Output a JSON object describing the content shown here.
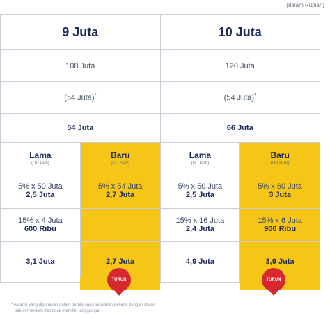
{
  "unit_note": "(dalam Rupiah)",
  "columns": [
    {
      "title": "9 Juta",
      "gross": "108 Juta",
      "ptkp": "(54 Juta)",
      "ptkp_mark": "*",
      "pkp": "54 Juta",
      "lama": {
        "label": "Lama",
        "sub": "(UU PPh)",
        "calc1_line": "5% x 50 Juta",
        "calc1_result": "2,5 Juta",
        "calc2_line": "15% x 4 Juta",
        "calc2_result": "600 Ribu",
        "total": "3,1 Juta"
      },
      "baru": {
        "label": "Baru",
        "sub": "(UU HPP)",
        "calc1_line": "5% x 54 Juta",
        "calc1_result": "2,7 Juta",
        "calc2_line": "",
        "calc2_result": "",
        "total": "2,7 Juta"
      },
      "badge": "TURUN"
    },
    {
      "title": "10 Juta",
      "gross": "120 Juta",
      "ptkp": "(54 Juta)",
      "ptkp_mark": "*",
      "pkp": "66 Juta",
      "lama": {
        "label": "Lama",
        "sub": "(UU PPh)",
        "calc1_line": "5% x 50 Juta",
        "calc1_result": "2,5 Juta",
        "calc2_line": "15% x 16 Juta",
        "calc2_result": "2,4 Juta",
        "total": "4,9 Juta"
      },
      "baru": {
        "label": "Baru",
        "sub": "(UU HPP)",
        "calc1_line": "5% x 60 Juta",
        "calc1_result": "3 Juta",
        "calc2_line": "15% x 6 Juta",
        "calc2_result": "900 Ribu",
        "total": "3,9 Juta"
      },
      "badge": "TURUN"
    }
  ],
  "footnote": {
    "mark": "*",
    "line1": "Asumsi yang digunakan dalam perhitungan ini adalah pekerja dengan status",
    "line2": "belum menikah dan tidak memiliki tanggungan"
  },
  "colors": {
    "highlight": "#f5c518",
    "badge": "#d7282f",
    "text": "#1a2a5a"
  }
}
